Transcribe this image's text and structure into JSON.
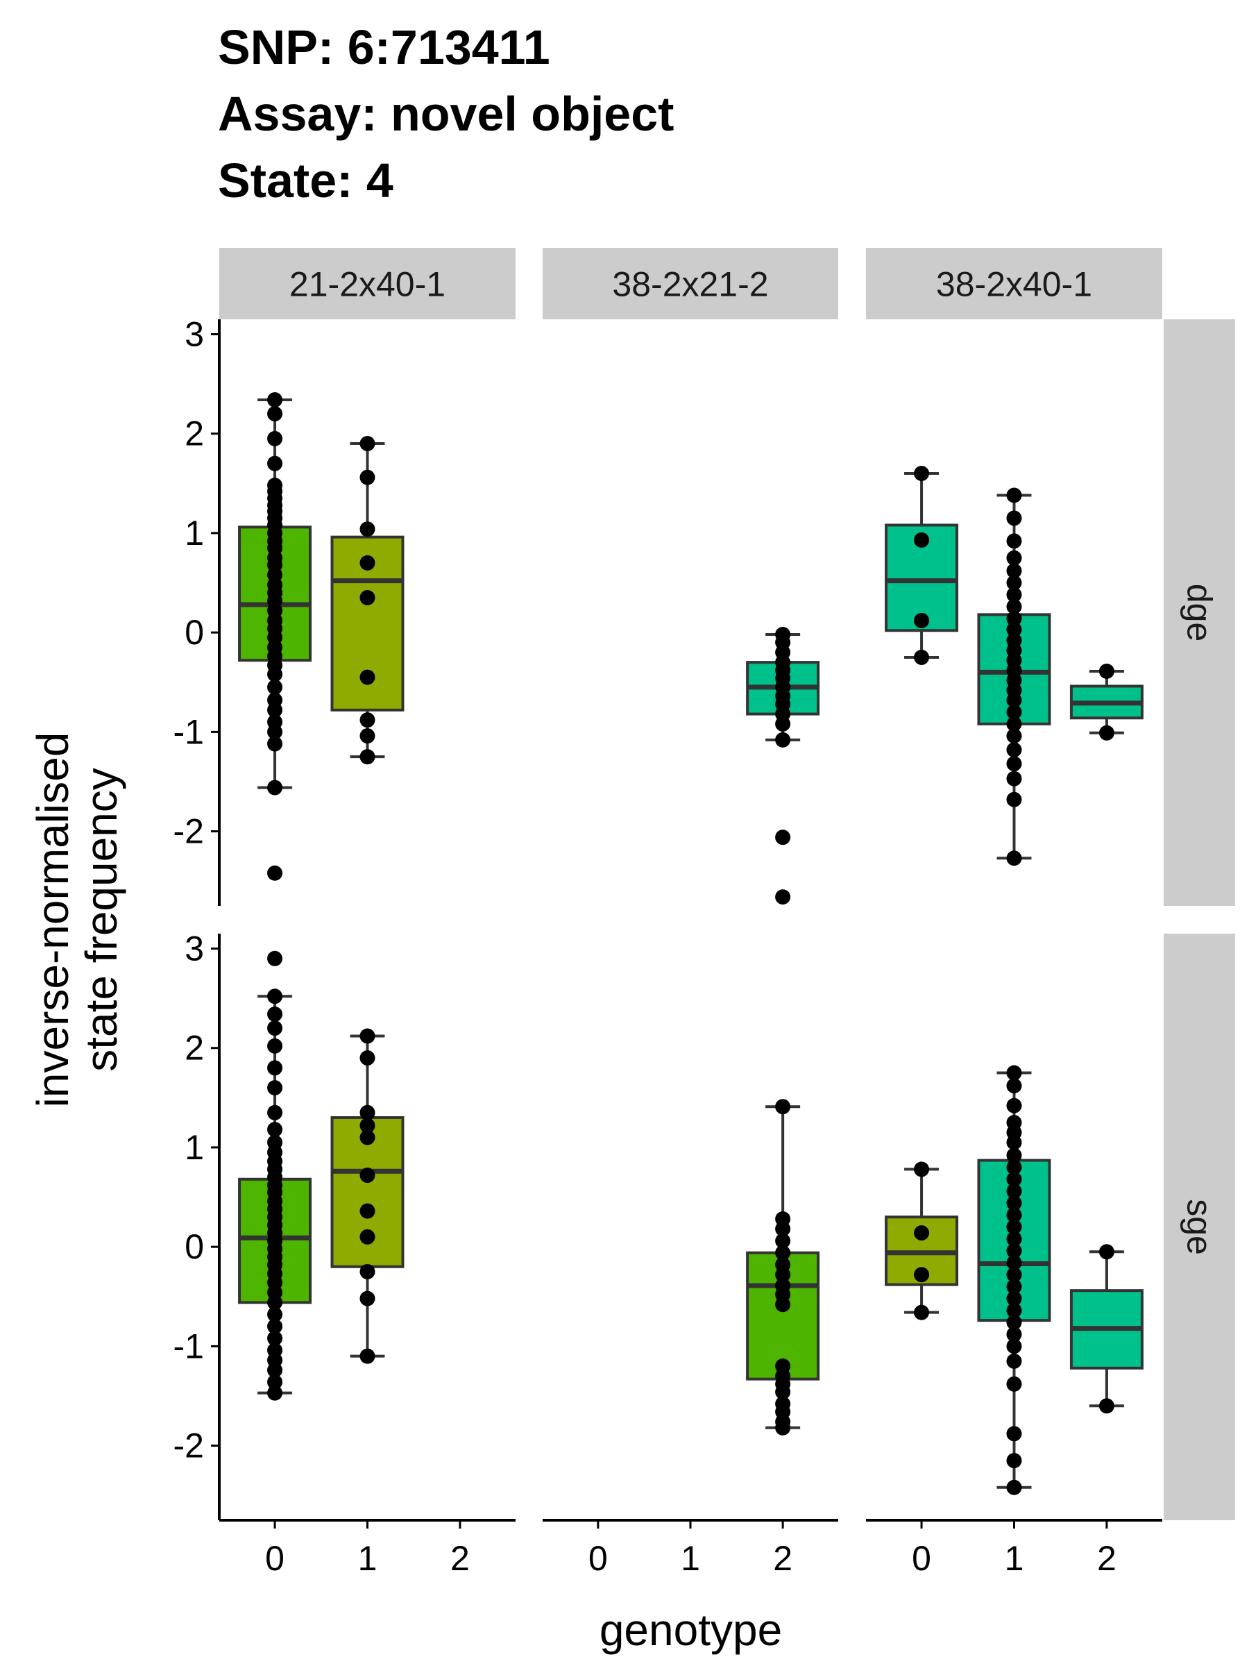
{
  "title_lines": [
    "SNP: 6:713411",
    "Assay: novel object",
    "State: 4"
  ],
  "colors": {
    "strip_bg": "#cccccc",
    "genotype_fill": {
      "0": "#4db500",
      "1": "#8faa00",
      "2": "#00c08b"
    },
    "point": "#000000",
    "box_outline": "#333333"
  },
  "chart_data": {
    "type": "boxplot",
    "xlabel": "genotype",
    "ylabel_lines": [
      "inverse-normalised",
      "state frequency"
    ],
    "x_categories": [
      "0",
      "1",
      "2"
    ],
    "y_ticks": [
      -2,
      -1,
      0,
      1,
      2,
      3
    ],
    "ylim": [
      -2.75,
      3.15
    ],
    "grid": false,
    "col_facets": [
      "21-2x40-1",
      "38-2x21-2",
      "38-2x40-1"
    ],
    "row_facets": [
      "dge",
      "sge"
    ],
    "panels": [
      {
        "row": "dge",
        "col": "21-2x40-1",
        "boxes": [
          {
            "genotype": "0",
            "fill": "#4db500",
            "min": -1.56,
            "q1": -0.28,
            "median": 0.28,
            "q3": 1.06,
            "max": 2.34,
            "points": [
              2.34,
              2.2,
              1.95,
              1.7,
              1.48,
              1.42,
              1.35,
              1.28,
              1.22,
              1.15,
              1.08,
              1.0,
              0.92,
              0.85,
              0.75,
              0.68,
              0.58,
              0.48,
              0.4,
              0.32,
              0.22,
              0.12,
              0.04,
              -0.05,
              -0.15,
              -0.24,
              -0.33,
              -0.42,
              -0.55,
              -0.68,
              -0.78,
              -0.9,
              -1.0,
              -1.12,
              -1.56,
              -2.42
            ]
          },
          {
            "genotype": "1",
            "fill": "#8faa00",
            "min": -1.25,
            "q1": -0.78,
            "median": 0.52,
            "q3": 0.96,
            "max": 1.9,
            "points": [
              1.9,
              1.56,
              1.04,
              0.7,
              0.35,
              -0.45,
              -0.88,
              -1.04,
              -1.25
            ]
          }
        ]
      },
      {
        "row": "dge",
        "col": "38-2x21-2",
        "boxes": [
          {
            "genotype": "2",
            "fill": "#00c08b",
            "min": -1.08,
            "q1": -0.82,
            "median": -0.55,
            "q3": -0.3,
            "max": -0.02,
            "points": [
              -0.02,
              -0.1,
              -0.2,
              -0.3,
              -0.38,
              -0.46,
              -0.55,
              -0.64,
              -0.72,
              -0.82,
              -0.92,
              -1.08,
              -2.06,
              -2.66
            ]
          }
        ]
      },
      {
        "row": "dge",
        "col": "38-2x40-1",
        "boxes": [
          {
            "genotype": "0",
            "fill": "#00c08b",
            "min": -0.25,
            "q1": 0.02,
            "median": 0.52,
            "q3": 1.08,
            "max": 1.6,
            "points": [
              1.6,
              0.93,
              0.12,
              -0.25
            ]
          },
          {
            "genotype": "1",
            "fill": "#00c08b",
            "min": -2.27,
            "q1": -0.92,
            "median": -0.4,
            "q3": 0.18,
            "max": 1.38,
            "points": [
              1.38,
              1.15,
              0.92,
              0.75,
              0.62,
              0.5,
              0.38,
              0.26,
              0.14,
              0.03,
              -0.08,
              -0.18,
              -0.28,
              -0.38,
              -0.48,
              -0.58,
              -0.68,
              -0.8,
              -0.92,
              -1.04,
              -1.18,
              -1.32,
              -1.47,
              -1.68,
              -2.27
            ]
          },
          {
            "genotype": "2",
            "fill": "#00c08b",
            "min": -1.01,
            "q1": -0.86,
            "median": -0.71,
            "q3": -0.54,
            "max": -0.39,
            "points": [
              -0.39,
              -1.01
            ]
          }
        ]
      },
      {
        "row": "sge",
        "col": "21-2x40-1",
        "boxes": [
          {
            "genotype": "0",
            "fill": "#4db500",
            "min": -1.47,
            "q1": -0.56,
            "median": 0.09,
            "q3": 0.68,
            "max": 2.52,
            "points": [
              2.9,
              2.52,
              2.34,
              2.2,
              2.02,
              1.8,
              1.6,
              1.35,
              1.18,
              1.05,
              0.95,
              0.86,
              0.78,
              0.7,
              0.62,
              0.55,
              0.46,
              0.38,
              0.3,
              0.22,
              0.14,
              0.06,
              -0.02,
              -0.1,
              -0.18,
              -0.27,
              -0.36,
              -0.46,
              -0.56,
              -0.68,
              -0.8,
              -0.92,
              -1.04,
              -1.14,
              -1.24,
              -1.36,
              -1.47
            ]
          },
          {
            "genotype": "1",
            "fill": "#8faa00",
            "min": -1.1,
            "q1": -0.2,
            "median": 0.76,
            "q3": 1.3,
            "max": 2.12,
            "points": [
              2.12,
              1.9,
              1.35,
              1.22,
              1.1,
              0.72,
              0.36,
              0.1,
              -0.25,
              -0.52,
              -1.1
            ]
          }
        ]
      },
      {
        "row": "sge",
        "col": "38-2x21-2",
        "boxes": [
          {
            "genotype": "2",
            "fill": "#4db500",
            "min": -1.82,
            "q1": -1.33,
            "median": -0.39,
            "q3": -0.06,
            "max": 1.41,
            "points": [
              1.41,
              0.28,
              0.18,
              0.06,
              -0.06,
              -0.18,
              -0.28,
              -0.39,
              -0.48,
              -0.58,
              -1.2,
              -1.3,
              -1.38,
              -1.46,
              -1.58,
              -1.66,
              -1.76,
              -1.82
            ]
          }
        ]
      },
      {
        "row": "sge",
        "col": "38-2x40-1",
        "boxes": [
          {
            "genotype": "0",
            "fill": "#8faa00",
            "min": -0.66,
            "q1": -0.38,
            "median": -0.06,
            "q3": 0.3,
            "max": 0.78,
            "points": [
              0.78,
              0.14,
              -0.28,
              -0.66
            ]
          },
          {
            "genotype": "1",
            "fill": "#00c08b",
            "min": -2.42,
            "q1": -0.74,
            "median": -0.17,
            "q3": 0.87,
            "max": 1.75,
            "points": [
              1.75,
              1.62,
              1.42,
              1.25,
              1.15,
              1.05,
              0.92,
              0.8,
              0.68,
              0.56,
              0.44,
              0.32,
              0.2,
              0.08,
              -0.04,
              -0.16,
              -0.28,
              -0.4,
              -0.52,
              -0.64,
              -0.76,
              -0.88,
              -1.0,
              -1.15,
              -1.38,
              -1.88,
              -2.15,
              -2.42
            ]
          },
          {
            "genotype": "2",
            "fill": "#00c08b",
            "min": -1.6,
            "q1": -1.22,
            "median": -0.82,
            "q3": -0.44,
            "max": -0.05,
            "points": [
              -0.05,
              -1.6
            ]
          }
        ]
      }
    ]
  }
}
